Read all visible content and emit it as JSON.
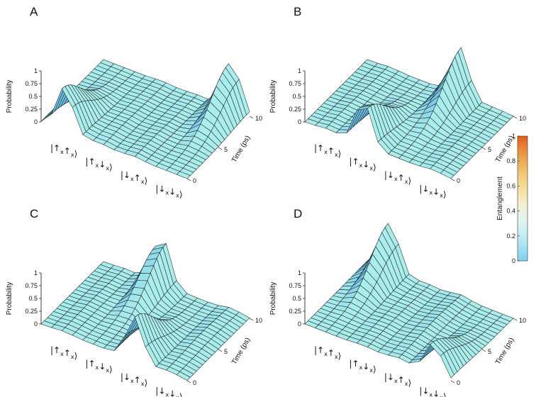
{
  "chart_data": [
    {
      "type": "surface3d",
      "panel_label": "A",
      "zlabel": "Probability",
      "ylabel": "Time (ps)",
      "x_categories": [
        "|↑x↑x⟩",
        "|↑x↓x⟩",
        "|↓x↑x⟩",
        "|↓x↓x⟩"
      ],
      "z_ticks": [
        "0",
        "0.25",
        "0.5",
        "0.75",
        "1"
      ],
      "y_ticks": [
        "0",
        "5",
        "10"
      ],
      "zlim": [
        0,
        1
      ],
      "ylim": [
        0,
        10
      ],
      "series": [
        {
          "state": "|↑x↑x⟩",
          "peak_probability": 0.85,
          "peak_time": 0
        },
        {
          "state": "|↑x↓x⟩",
          "peak_probability": 0.05,
          "peak_time": 3
        },
        {
          "state": "|↓x↑x⟩",
          "peak_probability": 0.05,
          "peak_time": 3
        },
        {
          "state": "|↓x↓x⟩",
          "peak_probability": 0.95,
          "peak_time": 10
        }
      ]
    },
    {
      "type": "surface3d",
      "panel_label": "B",
      "zlabel": "Probability",
      "ylabel": "Time (ps)",
      "x_categories": [
        "|↑x↑x⟩",
        "|↑x↓x⟩",
        "|↓x↑x⟩",
        "|↓x↓x⟩"
      ],
      "z_ticks": [
        "0",
        "0.25",
        "0.5",
        "0.75",
        "1"
      ],
      "y_ticks": [
        "0",
        "5",
        "10"
      ],
      "zlim": [
        0,
        1
      ],
      "ylim": [
        0,
        10
      ],
      "series": [
        {
          "state": "|↑x↑x⟩",
          "peak_probability": 0.05,
          "peak_time": 3
        },
        {
          "state": "|↑x↓x⟩",
          "peak_probability": 0.85,
          "peak_time": 0
        },
        {
          "state": "|↓x↑x⟩",
          "peak_probability": 0.95,
          "peak_time": 10
        },
        {
          "state": "|↓x↓x⟩",
          "peak_probability": 0.05,
          "peak_time": 3
        }
      ]
    },
    {
      "type": "surface3d",
      "panel_label": "C",
      "zlabel": "Probability",
      "ylabel": "Time (ps)",
      "x_categories": [
        "|↑x↑x⟩",
        "|↑x↓x⟩",
        "|↓x↑x⟩",
        "|↓x↓x⟩"
      ],
      "z_ticks": [
        "0",
        "0.25",
        "0.5",
        "0.75",
        "1"
      ],
      "y_ticks": [
        "0",
        "5",
        "10"
      ],
      "zlim": [
        0,
        1
      ],
      "ylim": [
        0,
        10
      ],
      "series": [
        {
          "state": "|↑x↑x⟩",
          "peak_probability": 0.05,
          "peak_time": 5
        },
        {
          "state": "|↑x↓x⟩",
          "peak_probability": 0.95,
          "peak_time": 10
        },
        {
          "state": "|↓x↑x⟩",
          "peak_probability": 0.85,
          "peak_time": 0
        },
        {
          "state": "|↓x↓x⟩",
          "peak_probability": 0.1,
          "peak_time": 6
        }
      ]
    },
    {
      "type": "surface3d",
      "panel_label": "D",
      "zlabel": "Probability",
      "ylabel": "Time (ps)",
      "x_categories": [
        "|↑x↑x⟩",
        "|↑x↓x⟩",
        "|↓x↑x⟩",
        "|↓x↓x⟩"
      ],
      "z_ticks": [
        "0",
        "0.25",
        "0.5",
        "0.75",
        "1"
      ],
      "y_ticks": [
        "0",
        "5",
        "10"
      ],
      "zlim": [
        0,
        1
      ],
      "ylim": [
        0,
        10
      ],
      "series": [
        {
          "state": "|↑x↑x⟩",
          "peak_probability": 0.95,
          "peak_time": 10
        },
        {
          "state": "|↑x↓x⟩",
          "peak_probability": 0.05,
          "peak_time": 5
        },
        {
          "state": "|↓x↑x⟩",
          "peak_probability": 0.1,
          "peak_time": 6
        },
        {
          "state": "|↓x↓x⟩",
          "peak_probability": 0.6,
          "peak_time": 0
        }
      ]
    }
  ],
  "colorbar": {
    "label": "Entanglement",
    "ticks": [
      "0",
      "0.2",
      "0.4",
      "0.6",
      "0.8",
      "1"
    ],
    "range": [
      0,
      1
    ],
    "colors": [
      "#7fd0ef",
      "#a6e0f2",
      "#c8eef3",
      "#e3f5ee",
      "#f3f0d3",
      "#f5e3a6",
      "#f3cf7e",
      "#eeb25a",
      "#e78d3a",
      "#df5f1f"
    ]
  },
  "style": {
    "surface_color": "#a9eded",
    "surface_shadow": "#5fb9e6",
    "grid_color": "#111111"
  }
}
